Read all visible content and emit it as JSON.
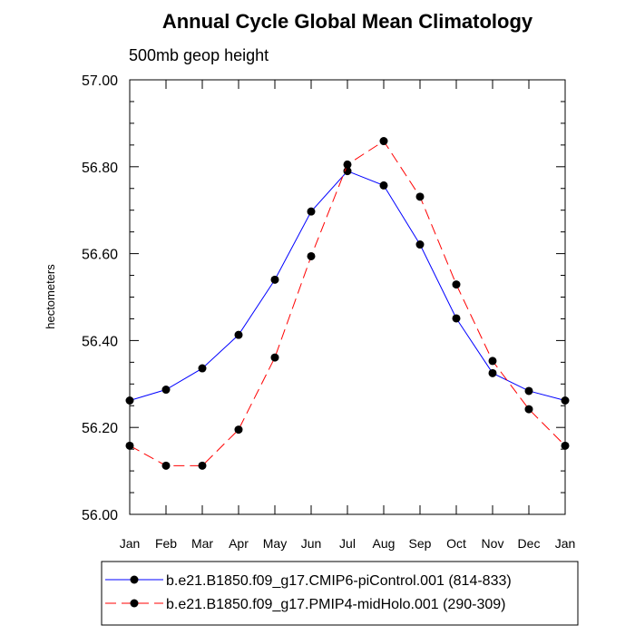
{
  "chart_data": {
    "type": "line",
    "title": "Annual Cycle Global Mean Climatology",
    "subtitle": "500mb geop height",
    "xlabel": "",
    "ylabel": "hectometers",
    "categories": [
      "Jan",
      "Feb",
      "Mar",
      "Apr",
      "May",
      "Jun",
      "Jul",
      "Aug",
      "Sep",
      "Oct",
      "Nov",
      "Dec",
      "Jan"
    ],
    "ylim": [
      56.0,
      57.0
    ],
    "yticks": [
      "56.00",
      "56.20",
      "56.40",
      "56.60",
      "56.80",
      "57.00"
    ],
    "ytick_values": [
      56.0,
      56.2,
      56.4,
      56.6,
      56.8,
      57.0
    ],
    "grid": false,
    "legend_position": "bottom",
    "series": [
      {
        "name": "b.e21.B1850.f09_g17.CMIP6-piControl.001 (814-833)",
        "color": "#0000ff",
        "dash": "solid",
        "marker": "filled-circle",
        "values": [
          56.262,
          56.287,
          56.336,
          56.413,
          56.54,
          56.697,
          56.79,
          56.757,
          56.621,
          56.451,
          56.325,
          56.284,
          56.262
        ]
      },
      {
        "name": "b.e21.B1850.f09_g17.PMIP4-midHolo.001 (290-309)",
        "color": "#ff0000",
        "dash": "dashed",
        "marker": "filled-circle",
        "values": [
          56.158,
          56.112,
          56.112,
          56.195,
          56.361,
          56.594,
          56.805,
          56.859,
          56.731,
          56.529,
          56.353,
          56.242,
          56.158
        ]
      }
    ]
  }
}
